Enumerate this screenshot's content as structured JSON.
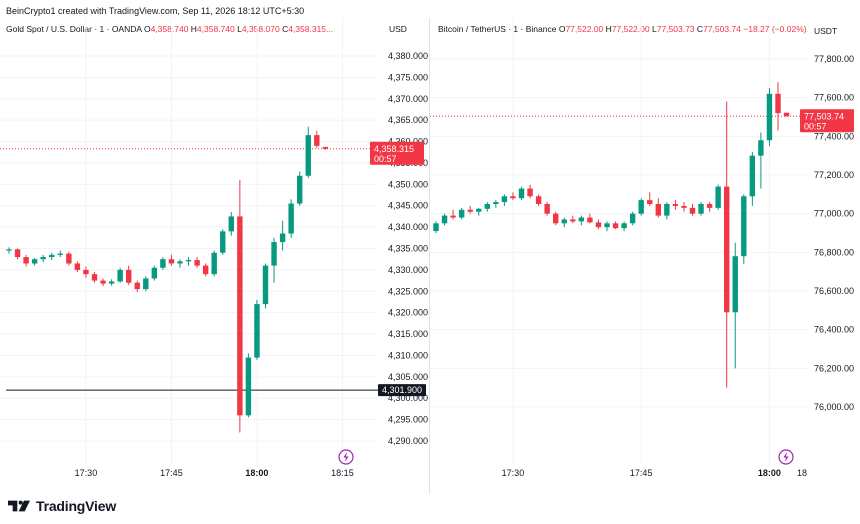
{
  "header": {
    "text": "BeinCrypto1 created with TradingView.com, Sep 11, 2026 18:12 UTC+5:30"
  },
  "footer": {
    "brand": "TradingView"
  },
  "colors": {
    "up": "#089981",
    "down": "#f23645",
    "line_black": "#131722",
    "grid": "#f0f3fa"
  },
  "chart_data": [
    {
      "type": "candlestick",
      "symbol": "Gold Spot / U.S. Dollar · 1 · OANDA",
      "legend": {
        "O": "O",
        "O_val": "4,358.740",
        "H": "H",
        "H_val": "4,358.740",
        "L": "L",
        "L_val": "4,358.070",
        "C": "C",
        "C_val": "4,358.315..."
      },
      "currency": "USD",
      "ylim": [
        4287.5,
        4382.5
      ],
      "y_ticks": [
        "4,380.000",
        "4,375.000",
        "4,370.000",
        "4,365.000",
        "4,360.000",
        "4,355.000",
        "4,350.000",
        "4,345.000",
        "4,340.000",
        "4,335.000",
        "4,330.000",
        "4,325.000",
        "4,320.000",
        "4,315.000",
        "4,310.000",
        "4,305.000",
        "4,300.000",
        "4,295.000",
        "4,290.000"
      ],
      "y_tick_values": [
        4380,
        4375,
        4370,
        4365,
        4360,
        4355,
        4350,
        4345,
        4340,
        4335,
        4330,
        4325,
        4320,
        4315,
        4310,
        4305,
        4300,
        4295,
        4290
      ],
      "x_ticks": [
        "17:30",
        "17:45",
        "18:00",
        "18:15"
      ],
      "x_tick_bold": [
        false,
        false,
        true,
        false
      ],
      "x_tick_index": [
        9,
        19,
        29,
        39
      ],
      "last_price": {
        "value": 4358.315,
        "label": "4,358.315",
        "countdown": "00:57"
      },
      "horizontal_line": {
        "value": 4301.9,
        "label": "4,301.900"
      },
      "candles": [
        [
          4334.5,
          4335.3,
          4333.8,
          4334.8
        ],
        [
          4334.8,
          4335.0,
          4332.5,
          4333.0
        ],
        [
          4333.0,
          4333.5,
          4330.8,
          4331.5
        ],
        [
          4331.5,
          4332.8,
          4331.0,
          4332.5
        ],
        [
          4332.5,
          4333.5,
          4331.8,
          4333.0
        ],
        [
          4333.0,
          4334.0,
          4332.3,
          4333.5
        ],
        [
          4333.5,
          4334.5,
          4333.0,
          4333.8
        ],
        [
          4333.8,
          4334.2,
          4331.0,
          4331.5
        ],
        [
          4331.5,
          4332.0,
          4329.5,
          4330.0
        ],
        [
          4330.0,
          4330.8,
          4328.2,
          4329.0
        ],
        [
          4329.0,
          4329.5,
          4327.0,
          4327.5
        ],
        [
          4327.5,
          4328.0,
          4326.2,
          4326.8
        ],
        [
          4326.8,
          4327.8,
          4326.3,
          4327.3
        ],
        [
          4327.3,
          4330.5,
          4327.0,
          4330.0
        ],
        [
          4330.0,
          4331.0,
          4326.5,
          4327.0
        ],
        [
          4327.0,
          4327.5,
          4324.8,
          4325.5
        ],
        [
          4325.5,
          4328.5,
          4325.0,
          4328.0
        ],
        [
          4328.0,
          4331.0,
          4327.5,
          4330.5
        ],
        [
          4330.5,
          4333.0,
          4330.0,
          4332.5
        ],
        [
          4332.5,
          4333.5,
          4331.0,
          4331.5
        ],
        [
          4331.5,
          4332.5,
          4330.5,
          4332.0
        ],
        [
          4332.0,
          4333.0,
          4331.0,
          4332.3
        ],
        [
          4332.3,
          4333.0,
          4330.5,
          4331.0
        ],
        [
          4331.0,
          4331.5,
          4328.5,
          4329.0
        ],
        [
          4329.0,
          4334.5,
          4328.5,
          4334.0
        ],
        [
          4334.0,
          4339.5,
          4333.5,
          4339.0
        ],
        [
          4339.0,
          4343.5,
          4338.0,
          4342.5
        ],
        [
          4342.5,
          4351.0,
          4292.0,
          4296.0
        ],
        [
          4296.0,
          4310.5,
          4295.5,
          4309.5
        ],
        [
          4309.5,
          4323.0,
          4309.0,
          4322.0
        ],
        [
          4322.0,
          4331.5,
          4321.0,
          4331.0
        ],
        [
          4331.0,
          4337.5,
          4327.0,
          4336.5
        ],
        [
          4336.5,
          4341.5,
          4334.5,
          4338.5
        ],
        [
          4338.5,
          4346.5,
          4337.5,
          4345.5
        ],
        [
          4345.5,
          4353.0,
          4345.0,
          4352.0
        ],
        [
          4352.0,
          4363.5,
          4351.5,
          4361.5
        ],
        [
          4361.5,
          4362.5,
          4358.5,
          4359.0
        ],
        [
          4358.74,
          4358.74,
          4358.07,
          4358.315
        ]
      ]
    },
    {
      "type": "candlestick",
      "symbol": "Bitcoin / TetherUS · 1 · Binance",
      "legend": {
        "O": "O",
        "O_val": "77,522.00",
        "H": "H",
        "H_val": "77,522.00",
        "L": "L",
        "L_val": "77,503.73",
        "C": "C",
        "C_val": "77,503.74",
        "chg": "−18.27 (−0.02%)"
      },
      "currency": "USDT",
      "ylim": [
        75900,
        78100
      ],
      "y_ticks": [
        "77,800.00",
        "77,600.00",
        "77,400.00",
        "77,200.00",
        "77,000.00",
        "76,800.00",
        "76,600.00",
        "76,400.00",
        "76,200.00",
        "76,000.00"
      ],
      "y_tick_values": [
        77800,
        77600,
        77400,
        77200,
        77000,
        76800,
        76600,
        76400,
        76200,
        76000
      ],
      "x_ticks": [
        "17:30",
        "17:45",
        "18:00",
        "18"
      ],
      "x_tick_bold": [
        false,
        false,
        true,
        false
      ],
      "x_tick_index": [
        9,
        24,
        39,
        54
      ],
      "last_price": {
        "value": 77503.74,
        "label": "77,503.74",
        "countdown": "00:57"
      },
      "candles": [
        [
          76910,
          76960,
          76900,
          76950
        ],
        [
          76950,
          77000,
          76940,
          76990
        ],
        [
          76990,
          77020,
          76970,
          76980
        ],
        [
          76980,
          77030,
          76970,
          77020
        ],
        [
          77020,
          77040,
          77000,
          77010
        ],
        [
          77010,
          77030,
          76990,
          77025
        ],
        [
          77025,
          77060,
          77010,
          77050
        ],
        [
          77050,
          77070,
          77030,
          77060
        ],
        [
          77060,
          77100,
          77040,
          77090
        ],
        [
          77090,
          77110,
          77070,
          77080
        ],
        [
          77080,
          77140,
          77070,
          77130
        ],
        [
          77130,
          77150,
          77080,
          77090
        ],
        [
          77090,
          77100,
          77040,
          77050
        ],
        [
          77050,
          77060,
          76990,
          77000
        ],
        [
          77000,
          77010,
          76940,
          76950
        ],
        [
          76950,
          76980,
          76930,
          76970
        ],
        [
          76970,
          76990,
          76950,
          76960
        ],
        [
          76960,
          76990,
          76940,
          76980
        ],
        [
          76980,
          77000,
          76950,
          76955
        ],
        [
          76955,
          76970,
          76920,
          76930
        ],
        [
          76930,
          76960,
          76910,
          76950
        ],
        [
          76950,
          76960,
          76920,
          76925
        ],
        [
          76925,
          76960,
          76910,
          76950
        ],
        [
          76950,
          77010,
          76940,
          77000
        ],
        [
          77000,
          77080,
          76990,
          77070
        ],
        [
          77070,
          77110,
          77040,
          77050
        ],
        [
          77050,
          77080,
          76980,
          76990
        ],
        [
          76990,
          77060,
          76970,
          77050
        ],
        [
          77050,
          77070,
          77020,
          77040
        ],
        [
          77040,
          77060,
          77010,
          77030
        ],
        [
          77030,
          77050,
          76990,
          77000
        ],
        [
          77000,
          77060,
          76990,
          77050
        ],
        [
          77050,
          77060,
          77010,
          77030
        ],
        [
          77030,
          77150,
          77020,
          77140
        ],
        [
          77140,
          77580,
          76100,
          76490
        ],
        [
          76490,
          76850,
          76200,
          76780
        ],
        [
          76780,
          77100,
          76740,
          77090
        ],
        [
          77090,
          77320,
          77040,
          77300
        ],
        [
          77300,
          77420,
          77130,
          77380
        ],
        [
          77380,
          77650,
          77350,
          77620
        ],
        [
          77620,
          77680,
          77430,
          77520
        ],
        [
          77522,
          77522,
          77503.73,
          77503.74
        ]
      ]
    }
  ]
}
